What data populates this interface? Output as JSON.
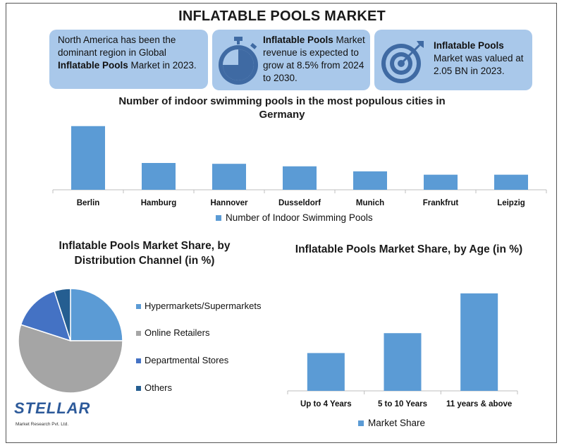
{
  "header": {
    "title": "INFLATABLE POOLS MARKET"
  },
  "info_boxes": [
    {
      "pre": "North America has been the dominant region in Global ",
      "bold": "Inflatable Pools",
      "post": " Market in 2023.",
      "icon": "none"
    },
    {
      "pre": "",
      "bold": "Inflatable Pools",
      "post": " Market revenue is expected to grow at 8.5% from 2024 to 2030.",
      "icon": "stopwatch-icon"
    },
    {
      "pre": "",
      "bold": "Inflatable Pools",
      "post": " Market was valued at 2.05 BN in 2023.",
      "icon": "target-icon"
    }
  ],
  "colors": {
    "box_bg": "#a9c8ea",
    "icon_blue": "#3f6aa3",
    "bar_blue": "#5b9bd5",
    "pie_hyper": "#5b9bd5",
    "pie_online": "#a5a5a5",
    "pie_department": "#4472c4",
    "pie_others": "#255e91"
  },
  "chart_data": [
    {
      "type": "bar",
      "title": "Number of indoor swimming pools in the most populous cities in Germany",
      "categories": [
        "Berlin",
        "Hamburg",
        "Hannover",
        "Dusseldorf",
        "Munich",
        "Frankfrut",
        "Leipzig"
      ],
      "series": [
        {
          "name": "Number of Indoor Swimming Pools",
          "values": [
            38,
            16,
            15.5,
            14,
            11,
            9,
            9
          ]
        }
      ],
      "ylim": [
        0,
        40
      ],
      "grid": false,
      "legend": "bottom"
    },
    {
      "type": "pie",
      "title": "Inflatable Pools Market Share, by Distribution Channel (in %)",
      "labels": [
        "Hypermarkets/Supermarkets",
        "Online Retailers",
        "Departmental Stores",
        "Others"
      ],
      "values": [
        25,
        55,
        15,
        5
      ],
      "legend": "right"
    },
    {
      "type": "bar",
      "title": "Inflatable Pools Market Share, by Age (in %)",
      "categories": [
        "Up to 4 Years",
        "5 to 10 Years",
        "11 years & above"
      ],
      "series": [
        {
          "name": "Market Share",
          "values": [
            19,
            29,
            49
          ]
        }
      ],
      "ylim": [
        0,
        50
      ],
      "grid": false,
      "legend": "bottom"
    }
  ],
  "logo": {
    "name": "STELLAR",
    "sub": "Market Research Pvt. Ltd."
  }
}
